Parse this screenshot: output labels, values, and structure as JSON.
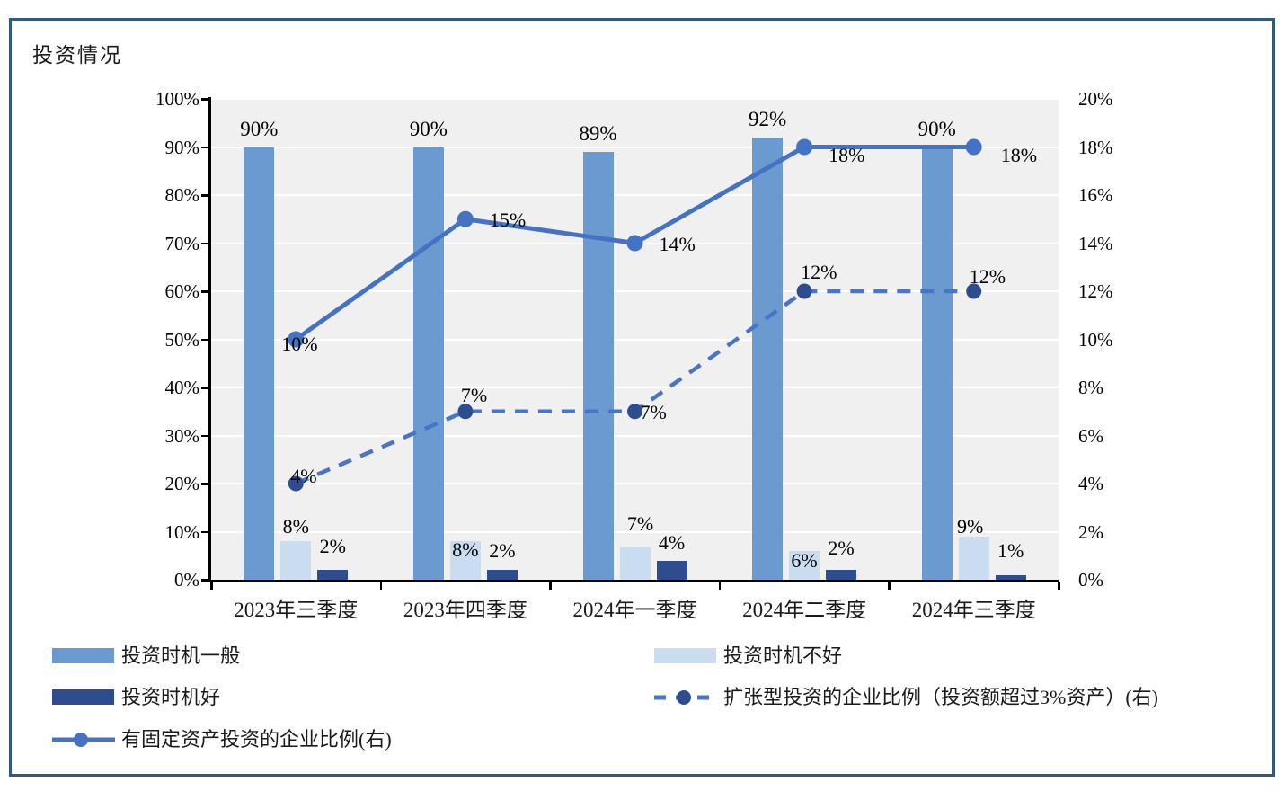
{
  "title": "投资情况",
  "colors": {
    "frame_border": "#35597e",
    "plot_background": "#f0f0f0",
    "gridline": "#ffffff",
    "axis": "#000000",
    "bar_medium_blue": "#6b9ad1",
    "bar_light_blue": "#cadcf0",
    "bar_dark_blue": "#2e4d8e",
    "line_blue": "#4472c4",
    "dashed_line_blue": "#4a74c8",
    "dashed_marker_navy": "#2e4d8f"
  },
  "chart_data": {
    "type": "bar",
    "subtype": "clustered-bars-with-two-lines",
    "title": "投资情况",
    "categories": [
      "2023年三季度",
      "2023年四季度",
      "2024年一季度",
      "2024年二季度",
      "2024年三季度"
    ],
    "bar_series": [
      {
        "name": "投资时机一般",
        "axis": "left",
        "color": "#6b9ad1",
        "values": [
          90,
          90,
          89,
          92,
          90
        ],
        "data_labels": [
          "90%",
          "90%",
          "89%",
          "92%",
          "90%"
        ]
      },
      {
        "name": "投资时机不好",
        "axis": "left",
        "color": "#cadcf0",
        "values": [
          8,
          8,
          7,
          6,
          9
        ],
        "data_labels": [
          "8%",
          "8%",
          "7%",
          "6%",
          "9%"
        ]
      },
      {
        "name": "投资时机好",
        "axis": "left",
        "color": "#2e4d8e",
        "values": [
          2,
          2,
          4,
          2,
          1
        ],
        "data_labels": [
          "2%",
          "2%",
          "4%",
          "2%",
          "1%"
        ]
      }
    ],
    "line_series": [
      {
        "name": "有固定资产投资的企业比例(右)",
        "axis": "right",
        "style": "solid",
        "color": "#4472c4",
        "marker_color": "#4472c4",
        "values": [
          10,
          15,
          14,
          18,
          18
        ],
        "data_labels": [
          "10%",
          "15%",
          "14%",
          "18%",
          "18%"
        ]
      },
      {
        "name": "扩张型投资的企业比例（投资额超过3%资产）(右)",
        "axis": "right",
        "style": "dashed",
        "color": "#4a74c8",
        "marker_color": "#2e4d8f",
        "values": [
          4,
          7,
          7,
          12,
          12
        ],
        "data_labels": [
          "4%",
          "7%",
          "7%",
          "12%",
          "12%"
        ]
      }
    ],
    "left_axis": {
      "min": 0,
      "max": 100,
      "step": 10,
      "tick_labels": [
        "0%",
        "10%",
        "20%",
        "30%",
        "40%",
        "50%",
        "60%",
        "70%",
        "80%",
        "90%",
        "100%"
      ]
    },
    "right_axis": {
      "min": 0,
      "max": 20,
      "step": 2,
      "tick_labels": [
        "0%",
        "2%",
        "4%",
        "6%",
        "8%",
        "10%",
        "12%",
        "14%",
        "16%",
        "18%",
        "20%"
      ]
    },
    "grid": true,
    "legend_position": "bottom"
  }
}
